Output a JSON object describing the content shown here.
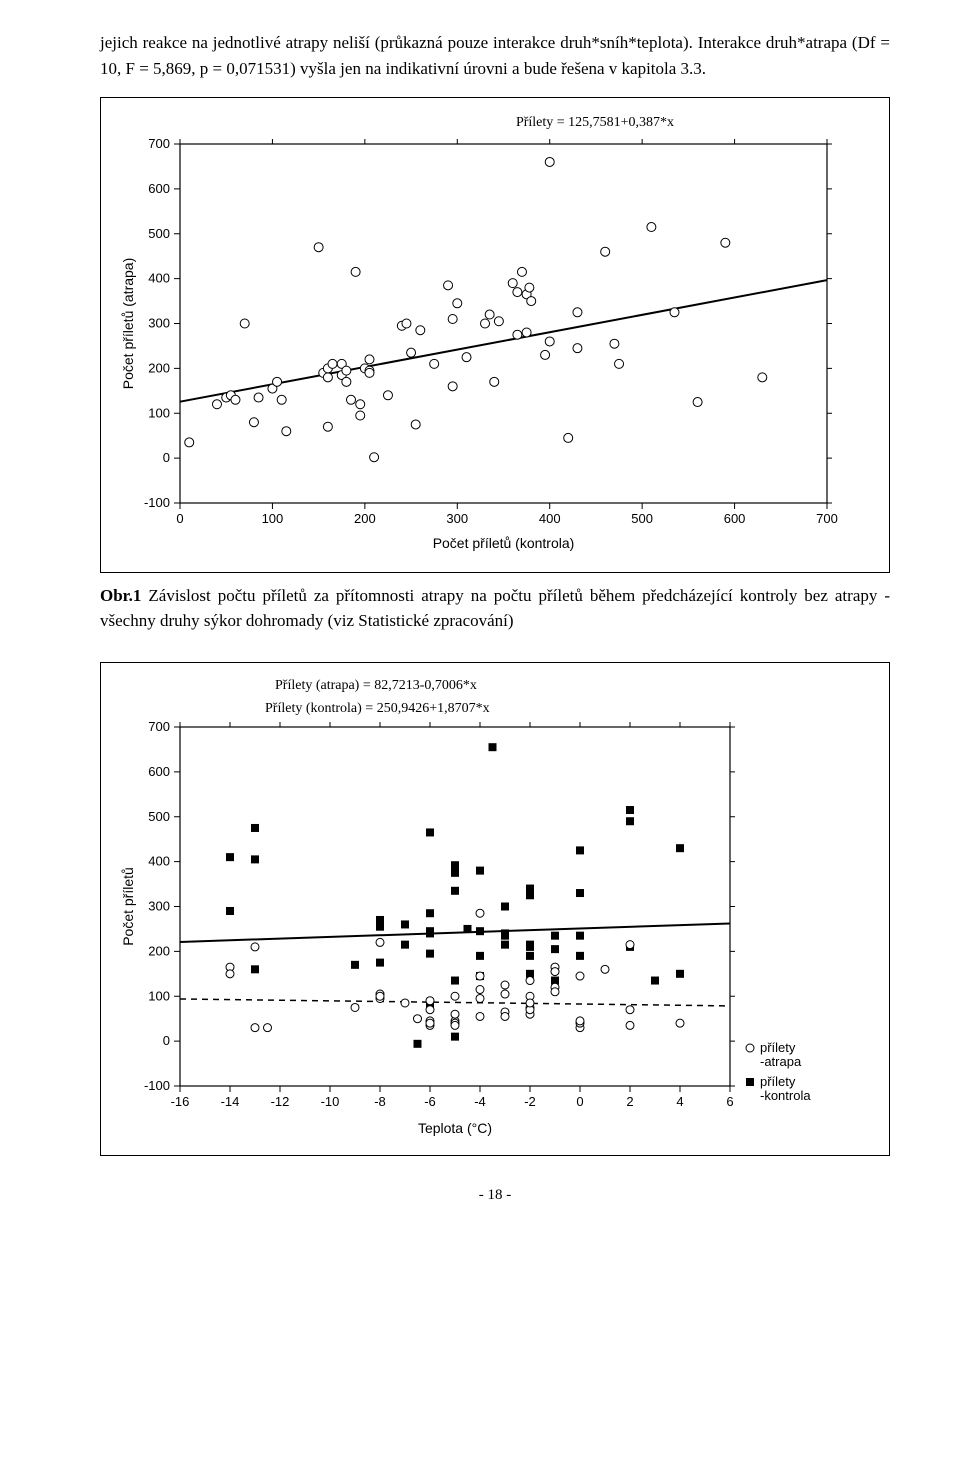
{
  "para1": "jejich reakce na jednotlivé atrapy neliší (průkazná pouze interakce druh*sníh*teplota). Interakce druh*atrapa (Df = 10, F = 5,869, p = 0,071531) vyšla jen na indikativní úrovni a bude řešena v kapitola 3.3.",
  "fig1": {
    "equation": "Přílety = 125,7581+0,387*x",
    "xlabel": "Počet příletů (kontrola)",
    "ylabel": "Počet příletů (atrapa)",
    "xlim": [
      0,
      700
    ],
    "ylim": [
      -100,
      700
    ],
    "xticks": [
      0,
      100,
      200,
      300,
      400,
      500,
      600,
      700
    ],
    "yticks": [
      -100,
      0,
      100,
      200,
      300,
      400,
      500,
      600,
      700
    ],
    "line": {
      "intercept": 125.7581,
      "slope": 0.387
    },
    "line_color": "#000000",
    "line_width": 2,
    "marker_stroke": "#000000",
    "marker_fill": "#ffffff",
    "marker_r": 4.5,
    "points": [
      [
        10,
        35
      ],
      [
        40,
        120
      ],
      [
        50,
        135
      ],
      [
        55,
        140
      ],
      [
        60,
        130
      ],
      [
        80,
        80
      ],
      [
        85,
        135
      ],
      [
        100,
        155
      ],
      [
        70,
        300
      ],
      [
        105,
        170
      ],
      [
        115,
        60
      ],
      [
        110,
        130
      ],
      [
        155,
        190
      ],
      [
        150,
        470
      ],
      [
        160,
        180
      ],
      [
        160,
        200
      ],
      [
        165,
        210
      ],
      [
        160,
        70
      ],
      [
        175,
        210
      ],
      [
        175,
        185
      ],
      [
        180,
        195
      ],
      [
        180,
        170
      ],
      [
        185,
        130
      ],
      [
        190,
        415
      ],
      [
        195,
        95
      ],
      [
        195,
        120
      ],
      [
        200,
        200
      ],
      [
        205,
        220
      ],
      [
        205,
        195
      ],
      [
        205,
        190
      ],
      [
        210,
        2
      ],
      [
        225,
        140
      ],
      [
        240,
        295
      ],
      [
        245,
        300
      ],
      [
        250,
        235
      ],
      [
        255,
        75
      ],
      [
        260,
        285
      ],
      [
        275,
        210
      ],
      [
        290,
        385
      ],
      [
        295,
        160
      ],
      [
        295,
        310
      ],
      [
        300,
        345
      ],
      [
        310,
        225
      ],
      [
        330,
        300
      ],
      [
        335,
        320
      ],
      [
        340,
        170
      ],
      [
        345,
        305
      ],
      [
        360,
        390
      ],
      [
        365,
        275
      ],
      [
        365,
        370
      ],
      [
        370,
        415
      ],
      [
        375,
        365
      ],
      [
        375,
        280
      ],
      [
        378,
        380
      ],
      [
        380,
        350
      ],
      [
        395,
        230
      ],
      [
        400,
        260
      ],
      [
        400,
        660
      ],
      [
        420,
        45
      ],
      [
        430,
        245
      ],
      [
        430,
        325
      ],
      [
        460,
        460
      ],
      [
        470,
        255
      ],
      [
        475,
        210
      ],
      [
        510,
        515
      ],
      [
        535,
        325
      ],
      [
        560,
        125
      ],
      [
        590,
        480
      ],
      [
        630,
        180
      ]
    ]
  },
  "caption1_label": "Obr.1",
  "caption1": " Závislost počtu příletů za přítomnosti atrapy na počtu příletů během předcházející kontroly bez atrapy - všechny druhy sýkor dohromady (viz Statistické zpracování)",
  "fig2": {
    "equation1": "Přílety (atrapa) = 82,7213-0,7006*x",
    "equation2": "Přílety (kontrola) = 250,9426+1,8707*x",
    "xlabel": "Teplota (°C)",
    "ylabel": "Počet příletů",
    "xlim": [
      -16,
      6
    ],
    "ylim": [
      -100,
      700
    ],
    "xticks": [
      -16,
      -14,
      -12,
      -10,
      -8,
      -6,
      -4,
      -2,
      0,
      2,
      4,
      6
    ],
    "yticks": [
      -100,
      0,
      100,
      200,
      300,
      400,
      500,
      600,
      700
    ],
    "line_solid": {
      "intercept": 250.9426,
      "slope": 1.8707,
      "color": "#000000",
      "width": 2
    },
    "line_dashed": {
      "intercept": 82.7213,
      "slope": -0.7006,
      "color": "#000000",
      "width": 1.5,
      "dash": "6,5"
    },
    "marker_open": {
      "stroke": "#000000",
      "fill": "#ffffff",
      "r": 4
    },
    "marker_square": {
      "fill": "#000000",
      "size": 8
    },
    "legend": {
      "open": "přílety -atrapa",
      "square": "přílety -kontrola"
    },
    "squares": [
      [
        -14,
        290
      ],
      [
        -14,
        410
      ],
      [
        -13,
        475
      ],
      [
        -13,
        160
      ],
      [
        -13,
        405
      ],
      [
        -9,
        170
      ],
      [
        -8,
        270
      ],
      [
        -8,
        175
      ],
      [
        -8,
        255
      ],
      [
        -7,
        215
      ],
      [
        -7,
        260
      ],
      [
        -6.5,
        -6
      ],
      [
        -6,
        465
      ],
      [
        -6,
        195
      ],
      [
        -6,
        245
      ],
      [
        -6,
        80
      ],
      [
        -6,
        285
      ],
      [
        -6,
        240
      ],
      [
        -5,
        135
      ],
      [
        -5,
        10
      ],
      [
        -5,
        375
      ],
      [
        -5,
        392
      ],
      [
        -5,
        335
      ],
      [
        -4.5,
        250
      ],
      [
        -4,
        380
      ],
      [
        -4,
        190
      ],
      [
        -4,
        245
      ],
      [
        -4,
        145
      ],
      [
        -3.5,
        655
      ],
      [
        -3,
        235
      ],
      [
        -3,
        215
      ],
      [
        -3,
        300
      ],
      [
        -3,
        240
      ],
      [
        -2,
        340
      ],
      [
        -2,
        325
      ],
      [
        -2,
        215
      ],
      [
        -2,
        210
      ],
      [
        -2,
        150
      ],
      [
        -2,
        190
      ],
      [
        -1,
        205
      ],
      [
        -1,
        235
      ],
      [
        -1,
        135
      ],
      [
        0,
        190
      ],
      [
        0,
        330
      ],
      [
        0,
        425
      ],
      [
        0,
        235
      ],
      [
        2,
        515
      ],
      [
        2,
        490
      ],
      [
        2,
        210
      ],
      [
        3,
        135
      ],
      [
        4,
        430
      ],
      [
        4,
        150
      ]
    ],
    "circles": [
      [
        -14,
        165
      ],
      [
        -14,
        150
      ],
      [
        -13,
        30
      ],
      [
        -12.5,
        30
      ],
      [
        -13,
        210
      ],
      [
        -9,
        75
      ],
      [
        -8,
        105
      ],
      [
        -8,
        95
      ],
      [
        -8,
        100
      ],
      [
        -8,
        220
      ],
      [
        -7,
        85
      ],
      [
        -6.5,
        50
      ],
      [
        -6,
        70
      ],
      [
        -6,
        35
      ],
      [
        -6,
        45
      ],
      [
        -6,
        40
      ],
      [
        -6,
        90
      ],
      [
        -5,
        45
      ],
      [
        -5,
        40
      ],
      [
        -5,
        35
      ],
      [
        -5,
        100
      ],
      [
        -5,
        60
      ],
      [
        -4,
        115
      ],
      [
        -4,
        285
      ],
      [
        -4,
        145
      ],
      [
        -4,
        95
      ],
      [
        -4,
        55
      ],
      [
        -3,
        125
      ],
      [
        -3,
        105
      ],
      [
        -3,
        65
      ],
      [
        -3,
        55
      ],
      [
        -2,
        135
      ],
      [
        -2,
        75
      ],
      [
        -2,
        100
      ],
      [
        -2,
        60
      ],
      [
        -2,
        70
      ],
      [
        -2,
        85
      ],
      [
        -1,
        120
      ],
      [
        -1,
        110
      ],
      [
        -1,
        165
      ],
      [
        -1,
        155
      ],
      [
        0,
        30
      ],
      [
        0,
        40
      ],
      [
        0,
        45
      ],
      [
        0,
        145
      ],
      [
        1,
        160
      ],
      [
        2,
        35
      ],
      [
        2,
        70
      ],
      [
        2,
        215
      ],
      [
        4,
        40
      ]
    ]
  },
  "footer": "- 18 -"
}
